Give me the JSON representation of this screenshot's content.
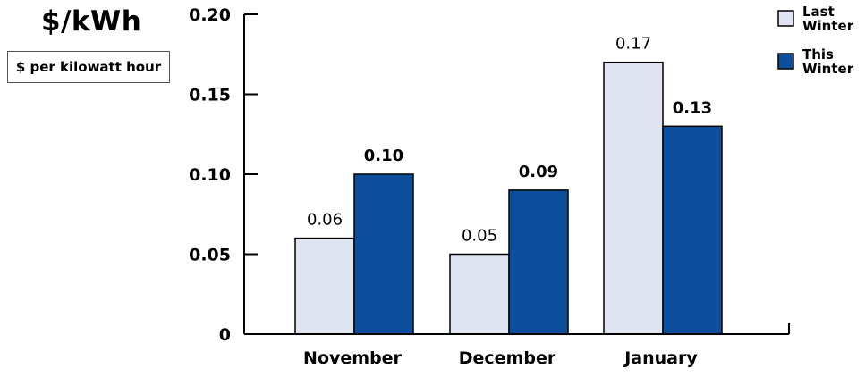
{
  "header": {
    "title": "$/kWh",
    "unit_label": "$ per kilowatt hour"
  },
  "colors": {
    "last_winter": "#e0e3f0",
    "this_winter": "#0b4f9c",
    "axis": "#000000"
  },
  "chart_data": {
    "type": "bar",
    "categories": [
      "November",
      "December",
      "January"
    ],
    "series": [
      {
        "name": "Last Winter",
        "values": [
          0.06,
          0.05,
          0.17
        ],
        "data_labels": [
          "0.06",
          "0.05",
          "0.17"
        ]
      },
      {
        "name": "This Winter",
        "values": [
          0.1,
          0.09,
          0.13
        ],
        "data_labels": [
          "0.10",
          "0.09",
          "0.13"
        ]
      }
    ],
    "ylim": [
      0,
      0.2
    ],
    "yticks": [
      0,
      0.05,
      0.1,
      0.15,
      0.2
    ],
    "ytick_labels": [
      "0",
      "0.05",
      "0.10",
      "0.15",
      "0.20"
    ],
    "legend": {
      "position": "top-right",
      "entries": [
        {
          "line1": "Last",
          "line2": "Winter"
        },
        {
          "line1": "This",
          "line2": "Winter"
        }
      ]
    },
    "grid": false
  }
}
